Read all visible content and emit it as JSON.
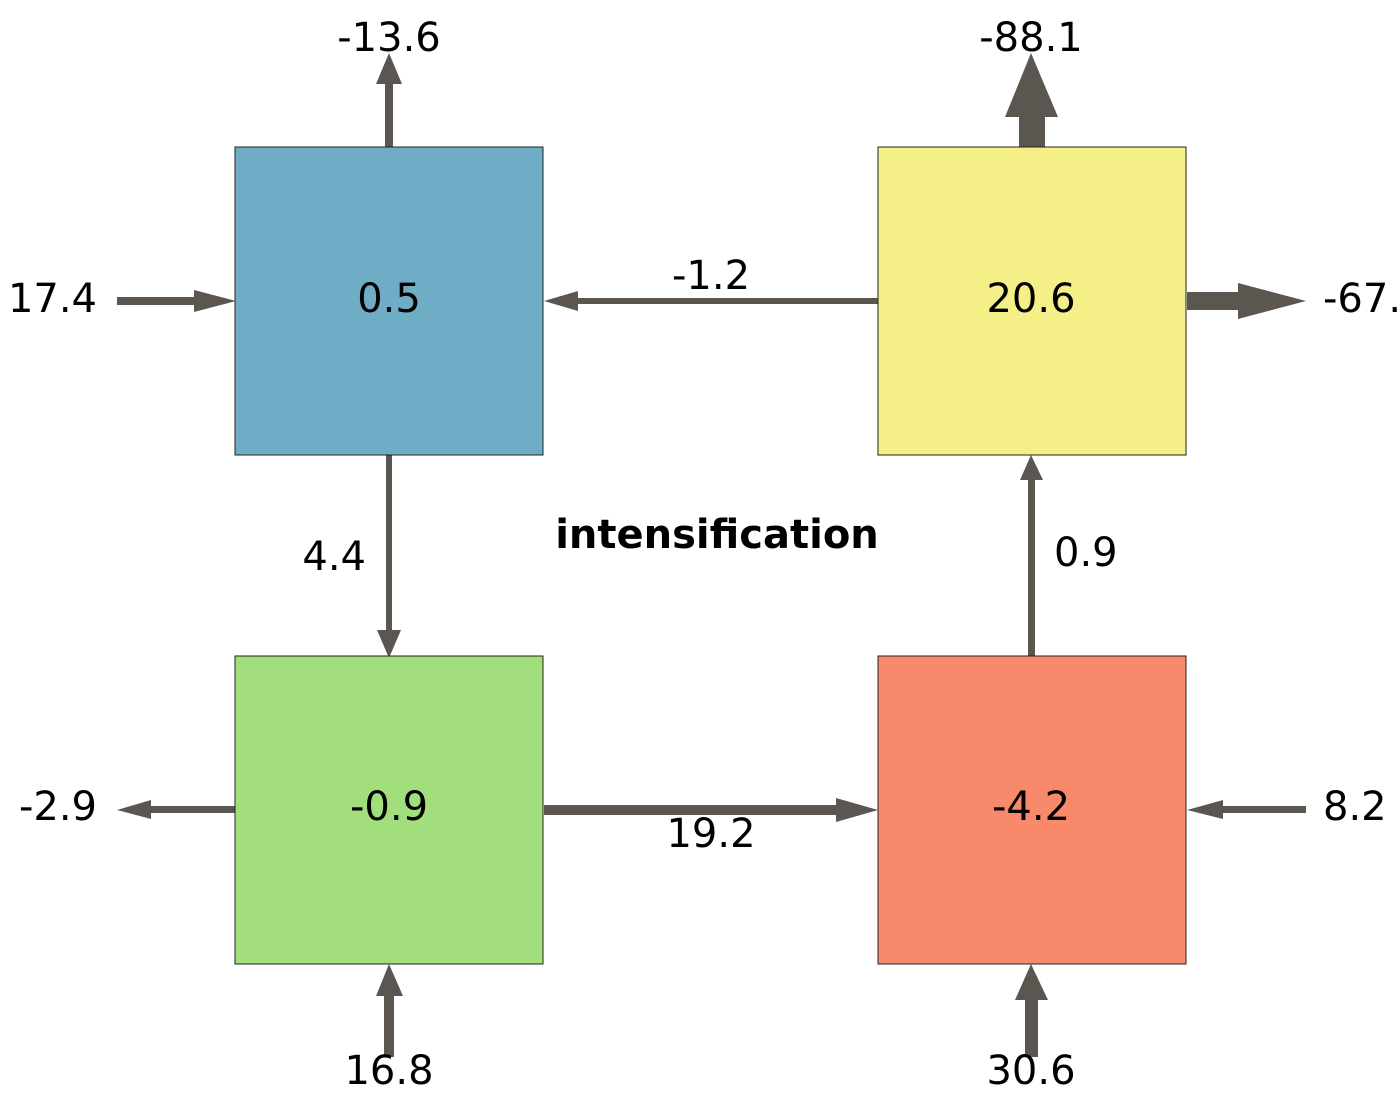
{
  "title": "intensification",
  "arrow_color": "#5b5750",
  "boxes": {
    "top_left": {
      "value": "0.5",
      "color": "#6fadc6"
    },
    "top_right": {
      "value": "20.6",
      "color": "#f5ef88"
    },
    "bottom_left": {
      "value": "-0.9",
      "color": "#a2de7b"
    },
    "bottom_right": {
      "value": "-4.2",
      "color": "#f8896b"
    }
  },
  "flows": {
    "top_left_up": "-13.6",
    "top_right_up": "-88.1",
    "left_in_top_left": "17.4",
    "top_right_out_right": "-67.",
    "top_right_to_top_left": "-1.2",
    "top_left_to_bottom_left": "4.4",
    "bottom_right_to_top_right": "0.9",
    "bottom_left_out_left": "-2.9",
    "bottom_left_to_bottom_right": "19.2",
    "right_in_bottom_right": "8.2",
    "bottom_in_bottom_left": "16.8",
    "bottom_in_bottom_right": "30.6"
  }
}
